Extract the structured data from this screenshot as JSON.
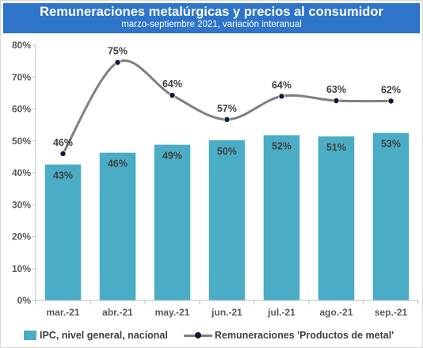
{
  "header": {
    "title": "Remuneraciones metalúrgicas y precios al consumidor",
    "subtitle": "marzo-septiembre 2021, variación interanual"
  },
  "colors": {
    "bar": "#4bacc6",
    "line": "#7f7f7f",
    "marker": "#0b1a3b",
    "header": "#2e74cb"
  },
  "legend": {
    "bars_label": "IPC, nivel general, nacional",
    "line_label": "Remuneraciones 'Productos de metal'"
  },
  "chart_data": {
    "type": "bar+line",
    "title": "Remuneraciones metalúrgicas y precios al consumidor",
    "subtitle": "marzo-septiembre 2021, variación interanual",
    "categories": [
      "mar.-21",
      "abr.-21",
      "may.-21",
      "jun.-21",
      "jul.-21",
      "ago.-21",
      "sep.-21"
    ],
    "series": [
      {
        "name": "IPC, nivel general, nacional",
        "type": "bar",
        "values": [
          42.6,
          46.3,
          48.8,
          50.2,
          51.8,
          51.4,
          52.5
        ],
        "labels": [
          "43%",
          "46%",
          "49%",
          "50%",
          "52%",
          "51%",
          "53%"
        ]
      },
      {
        "name": "Remuneraciones 'Productos de metal'",
        "type": "line",
        "values": [
          46,
          74.6,
          64.3,
          56.7,
          64,
          62.6,
          62.5
        ],
        "labels": [
          "46%",
          "75%",
          "64%",
          "57%",
          "64%",
          "63%",
          "62%"
        ]
      }
    ],
    "y_ticks": [
      "0%",
      "10%",
      "20%",
      "30%",
      "40%",
      "50%",
      "60%",
      "70%",
      "80%"
    ],
    "ylim": [
      0,
      80
    ],
    "grid": false,
    "legend_position": "bottom"
  }
}
